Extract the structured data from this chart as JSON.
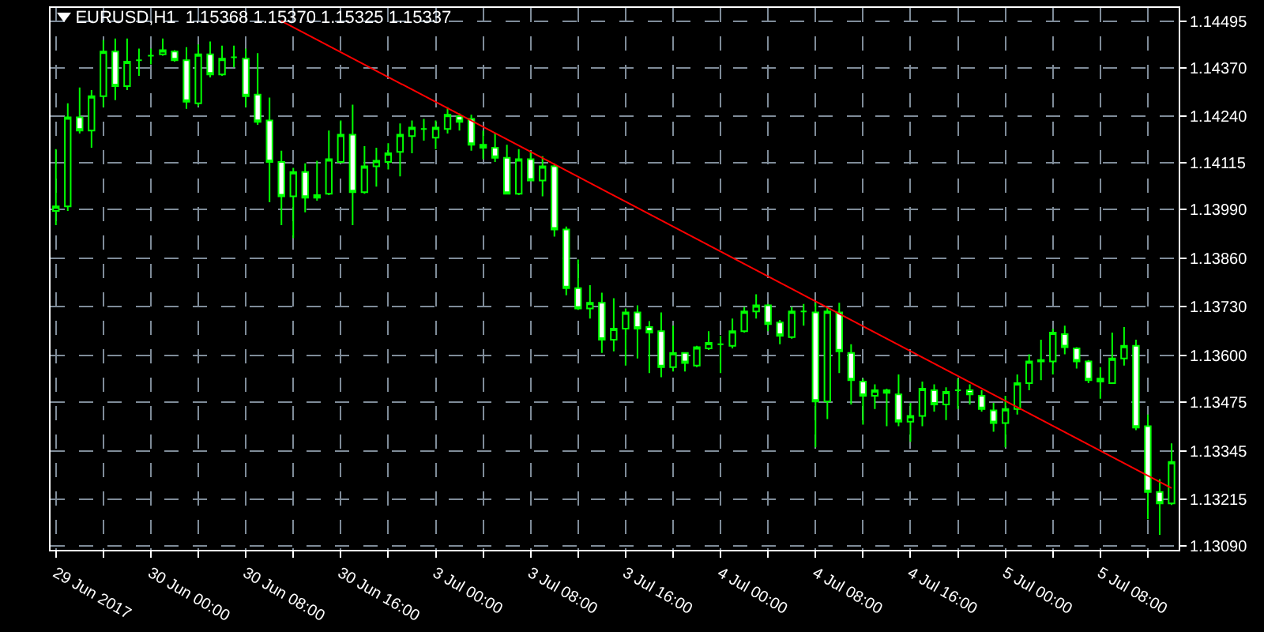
{
  "chart_data": {
    "type": "candlestick",
    "title": "EURUSD,H1  1.15368 1.15370 1.15325 1.15337",
    "color": "#00ff00",
    "categories": [
      "29 Jun 2017",
      null,
      null,
      null,
      null,
      null,
      null,
      null,
      "30 Jun 00:00",
      null,
      null,
      null,
      null,
      null,
      null,
      null,
      "30 Jun 08:00",
      null,
      null,
      null,
      null,
      null,
      null,
      null,
      "30 Jun 16:00",
      null,
      null,
      null,
      null,
      null,
      null,
      null,
      "3 Jul 00:00",
      null,
      null,
      null,
      null,
      null,
      null,
      null,
      "3 Jul 08:00",
      null,
      null,
      null,
      null,
      null,
      null,
      null,
      "3 Jul 16:00",
      null,
      null,
      null,
      null,
      null,
      null,
      null,
      "4 Jul 00:00",
      null,
      null,
      null,
      null,
      null,
      null,
      null,
      "4 Jul 08:00",
      null,
      null,
      null,
      null,
      null,
      null,
      null,
      "4 Jul 16:00",
      null,
      null,
      null,
      null,
      null,
      null,
      null,
      "5 Jul 00:00",
      null,
      null,
      null,
      null,
      null,
      null,
      null,
      "5 Jul 08:00",
      null,
      null,
      null,
      null,
      null,
      null
    ],
    "ohlc": [
      [
        1.13987,
        1.14152,
        1.13949,
        1.13999
      ],
      [
        1.13999,
        1.14275,
        1.13987,
        1.14237
      ],
      [
        1.14237,
        1.14317,
        1.14194,
        1.14202
      ],
      [
        1.14202,
        1.1431,
        1.14156,
        1.14294
      ],
      [
        1.14294,
        1.14444,
        1.14264,
        1.14413
      ],
      [
        1.14413,
        1.14448,
        1.14283,
        1.14321
      ],
      [
        1.14321,
        1.14448,
        1.1431,
        1.14386
      ],
      [
        1.1439,
        1.14421,
        1.14348,
        1.1439
      ],
      [
        1.14402,
        1.14421,
        1.14379,
        1.14402
      ],
      [
        1.14406,
        1.14448,
        1.14402,
        1.14417
      ],
      [
        1.14413,
        1.14417,
        1.14386,
        1.1439
      ],
      [
        1.1439,
        1.14425,
        1.1426,
        1.14279
      ],
      [
        1.14275,
        1.14432,
        1.14267,
        1.14406
      ],
      [
        1.14406,
        1.1444,
        1.14344,
        1.14352
      ],
      [
        1.14352,
        1.14429,
        1.14348,
        1.14394
      ],
      [
        1.14398,
        1.14429,
        1.14371,
        1.14398
      ],
      [
        1.14394,
        1.14421,
        1.14264,
        1.14294
      ],
      [
        1.14298,
        1.14409,
        1.14217,
        1.14225
      ],
      [
        1.14229,
        1.1429,
        1.1401,
        1.14118
      ],
      [
        1.14118,
        1.14148,
        1.13949,
        1.14026
      ],
      [
        1.14026,
        1.14102,
        1.13914,
        1.14091
      ],
      [
        1.14091,
        1.14114,
        1.13983,
        1.14022
      ],
      [
        1.14022,
        1.14121,
        1.14014,
        1.14029
      ],
      [
        1.14033,
        1.14202,
        1.14029,
        1.14125
      ],
      [
        1.14118,
        1.14229,
        1.14114,
        1.14191
      ],
      [
        1.14191,
        1.14271,
        1.13949,
        1.14037
      ],
      [
        1.14037,
        1.1416,
        1.14033,
        1.14106
      ],
      [
        1.14106,
        1.14156,
        1.14052,
        1.14121
      ],
      [
        1.14118,
        1.14168,
        1.14098,
        1.14141
      ],
      [
        1.14145,
        1.14221,
        1.14079,
        1.14191
      ],
      [
        1.14187,
        1.14229,
        1.14141,
        1.1421
      ],
      [
        1.14206,
        1.14233,
        1.14175,
        1.14206
      ],
      [
        1.14183,
        1.14229,
        1.14152,
        1.1421
      ],
      [
        1.14206,
        1.14264,
        1.14194,
        1.14244
      ],
      [
        1.1424,
        1.14248,
        1.14202,
        1.14225
      ],
      [
        1.14233,
        1.14244,
        1.14148,
        1.14164
      ],
      [
        1.14164,
        1.14202,
        1.14125,
        1.14156
      ],
      [
        1.14156,
        1.14194,
        1.14118,
        1.14129
      ],
      [
        1.14129,
        1.14164,
        1.14033,
        1.14033
      ],
      [
        1.14033,
        1.14152,
        1.14029,
        1.14125
      ],
      [
        1.14125,
        1.14145,
        1.14068,
        1.14068
      ],
      [
        1.14068,
        1.14133,
        1.14026,
        1.14106
      ],
      [
        1.14106,
        1.14114,
        1.13918,
        1.13937
      ],
      [
        1.13937,
        1.13945,
        1.13761,
        1.1378
      ],
      [
        1.1378,
        1.13857,
        1.13722,
        1.13726
      ],
      [
        1.13726,
        1.13788,
        1.13699,
        1.13741
      ],
      [
        1.13741,
        1.13768,
        1.13607,
        1.13642
      ],
      [
        1.13642,
        1.13753,
        1.13611,
        1.13672
      ],
      [
        1.13672,
        1.13726,
        1.13573,
        1.13715
      ],
      [
        1.13715,
        1.13734,
        1.13592,
        1.13672
      ],
      [
        1.13676,
        1.13692,
        1.13553,
        1.13661
      ],
      [
        1.13665,
        1.13715,
        1.13542,
        1.13569
      ],
      [
        1.13569,
        1.1368,
        1.13557,
        1.13607
      ],
      [
        1.13607,
        1.13607,
        1.13557,
        1.1358
      ],
      [
        1.13573,
        1.13626,
        1.13569,
        1.13622
      ],
      [
        1.13619,
        1.13665,
        1.13615,
        1.13634
      ],
      [
        1.1363,
        1.13653,
        1.13553,
        1.1363
      ],
      [
        1.13626,
        1.13699,
        1.13619,
        1.13665
      ],
      [
        1.13665,
        1.1373,
        1.13661,
        1.13718
      ],
      [
        1.13718,
        1.13764,
        1.13699,
        1.13734
      ],
      [
        1.13734,
        1.13738,
        1.13665,
        1.13684
      ],
      [
        1.13688,
        1.13695,
        1.1363,
        1.13653
      ],
      [
        1.13649,
        1.1373,
        1.13645,
        1.13718
      ],
      [
        1.13718,
        1.13738,
        1.1368,
        1.13718
      ],
      [
        1.13715,
        1.13741,
        1.13354,
        1.13477
      ],
      [
        1.13477,
        1.1373,
        1.1343,
        1.13718
      ],
      [
        1.13715,
        1.13741,
        1.13553,
        1.13611
      ],
      [
        1.13607,
        1.1363,
        1.13469,
        1.13534
      ],
      [
        1.1353,
        1.13538,
        1.13415,
        1.13492
      ],
      [
        1.13492,
        1.13523,
        1.13457,
        1.13507
      ],
      [
        1.13507,
        1.13511,
        1.13411,
        1.135
      ],
      [
        1.13496,
        1.13549,
        1.13411,
        1.13423
      ],
      [
        1.13423,
        1.13473,
        1.13369,
        1.13438
      ],
      [
        1.13438,
        1.1353,
        1.13411,
        1.13511
      ],
      [
        1.13507,
        1.13523,
        1.1345,
        1.13469
      ],
      [
        1.13469,
        1.13515,
        1.13427,
        1.13503
      ],
      [
        1.13507,
        1.13538,
        1.13457,
        1.13507
      ],
      [
        1.13507,
        1.13523,
        1.13469,
        1.13496
      ],
      [
        1.13492,
        1.13507,
        1.1345,
        1.13457
      ],
      [
        1.13453,
        1.13473,
        1.13396,
        1.13419
      ],
      [
        1.13419,
        1.13492,
        1.13354,
        1.13457
      ],
      [
        1.13457,
        1.13549,
        1.13442,
        1.13526
      ],
      [
        1.13526,
        1.13603,
        1.13507,
        1.13584
      ],
      [
        1.13584,
        1.13642,
        1.13534,
        1.13588
      ],
      [
        1.13584,
        1.13672,
        1.13549,
        1.13661
      ],
      [
        1.13657,
        1.1368,
        1.13603,
        1.13622
      ],
      [
        1.13619,
        1.13622,
        1.13565,
        1.13584
      ],
      [
        1.13584,
        1.13588,
        1.13526,
        1.13534
      ],
      [
        1.13538,
        1.13569,
        1.13484,
        1.1353
      ],
      [
        1.13526,
        1.13661,
        1.13526,
        1.13592
      ],
      [
        1.13592,
        1.13676,
        1.13573,
        1.13626
      ],
      [
        1.13626,
        1.13642,
        1.134,
        1.13407
      ],
      [
        1.13411,
        1.13442,
        1.13162,
        1.13235
      ],
      [
        1.13235,
        1.13269,
        1.1312,
        1.13204
      ],
      [
        1.13204,
        1.13365,
        1.132,
        1.13315
      ]
    ],
    "series": [
      {
        "type": "line",
        "color": "#ff0000",
        "values": [
          null,
          null,
          null,
          null,
          null,
          null,
          null,
          null,
          null,
          null,
          null,
          null,
          null,
          null,
          null,
          null,
          null,
          null,
          null,
          1.14495,
          null,
          null,
          null,
          null,
          null,
          null,
          null,
          null,
          null,
          null,
          null,
          null,
          null,
          null,
          null,
          null,
          null,
          null,
          null,
          null,
          null,
          null,
          null,
          null,
          null,
          null,
          null,
          null,
          null,
          null,
          null,
          null,
          null,
          null,
          null,
          null,
          null,
          null,
          null,
          null,
          null,
          null,
          null,
          null,
          null,
          null,
          null,
          null,
          null,
          null,
          null,
          null,
          null,
          null,
          null,
          null,
          null,
          null,
          null,
          null,
          null,
          null,
          null,
          null,
          null,
          null,
          null,
          null,
          null,
          null,
          null,
          null,
          null,
          null,
          1.13245
        ]
      }
    ],
    "ylim": [
      1.1308,
      1.1453
    ],
    "yticks": [
      1.14495,
      {
        "value": 1.1437,
        "label": "1.14370"
      },
      {
        "value": 1.1424,
        "label": "1.14240"
      },
      1.14115,
      {
        "value": 1.1399,
        "label": "1.13990"
      },
      {
        "value": 1.1386,
        "label": "1.13860"
      },
      {
        "value": 1.1373,
        "label": "1.13730"
      },
      {
        "value": 1.136,
        "label": "1.13600"
      },
      1.13475,
      1.13345,
      1.13215,
      {
        "value": 1.1309,
        "label": "1.13090"
      }
    ],
    "grid": true
  }
}
